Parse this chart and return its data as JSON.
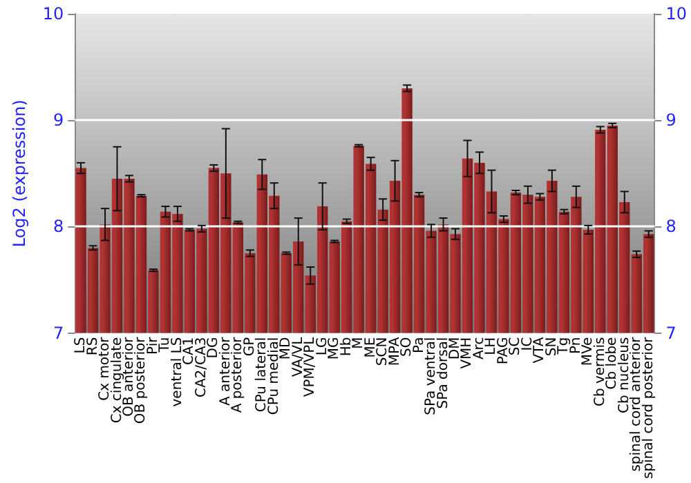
{
  "chart_data": {
    "type": "bar",
    "ylabel": "Log2 (expression)",
    "categories": [
      "LS",
      "RS",
      "Cx motor",
      "Cx cingulate",
      "OB anterior",
      "OB posterior",
      "Pir",
      "Tu",
      "ventral LS",
      "CA1",
      "CA2/CA3",
      "DG",
      "A anterior",
      "A posterior",
      "GP",
      "CPu lateral",
      "CPu medial",
      "MD",
      "VA/VL",
      "VPM/VPL",
      "LG",
      "MG",
      "Hb",
      "M",
      "ME",
      "SCN",
      "MPA",
      "SO",
      "Pa",
      "SPa ventral",
      "SPa dorsal",
      "DM",
      "VMH",
      "Arc",
      "LH",
      "PAG",
      "SC",
      "IC",
      "VTA",
      "SN",
      "Tg",
      "Pn",
      "MVe",
      "Cb vermis",
      "Cb lobe",
      "Cb nucleus",
      "spinal cord anterior",
      "spinal cord posterior"
    ],
    "values": [
      8.55,
      7.8,
      8.02,
      8.45,
      8.45,
      8.29,
      7.59,
      8.14,
      8.12,
      7.97,
      7.98,
      8.55,
      8.5,
      8.04,
      7.75,
      8.49,
      8.29,
      7.75,
      7.86,
      7.54,
      8.19,
      7.86,
      8.05,
      8.76,
      8.59,
      8.16,
      8.43,
      9.3,
      8.3,
      7.96,
      8.02,
      7.93,
      8.64,
      8.6,
      8.33,
      8.07,
      8.32,
      8.3,
      8.28,
      8.43,
      8.14,
      8.28,
      7.97,
      8.91,
      8.95,
      8.23,
      7.74,
      7.93
    ],
    "errors": [
      0.05,
      0.02,
      0.15,
      0.3,
      0.03,
      0.01,
      0.01,
      0.05,
      0.07,
      0.01,
      0.03,
      0.03,
      0.42,
      0.01,
      0.03,
      0.14,
      0.12,
      0.01,
      0.22,
      0.08,
      0.22,
      0.01,
      0.02,
      0.01,
      0.06,
      0.1,
      0.19,
      0.03,
      0.02,
      0.06,
      0.06,
      0.05,
      0.17,
      0.1,
      0.2,
      0.03,
      0.02,
      0.08,
      0.03,
      0.1,
      0.02,
      0.1,
      0.04,
      0.03,
      0.02,
      0.1,
      0.03,
      0.03
    ],
    "color": "#b03232",
    "ylim": [
      7,
      10
    ],
    "yticks": [
      7,
      8,
      9,
      10
    ],
    "y2lim": [
      7,
      10
    ],
    "y2ticks": [
      7,
      8,
      9,
      10
    ],
    "grid": "y"
  }
}
